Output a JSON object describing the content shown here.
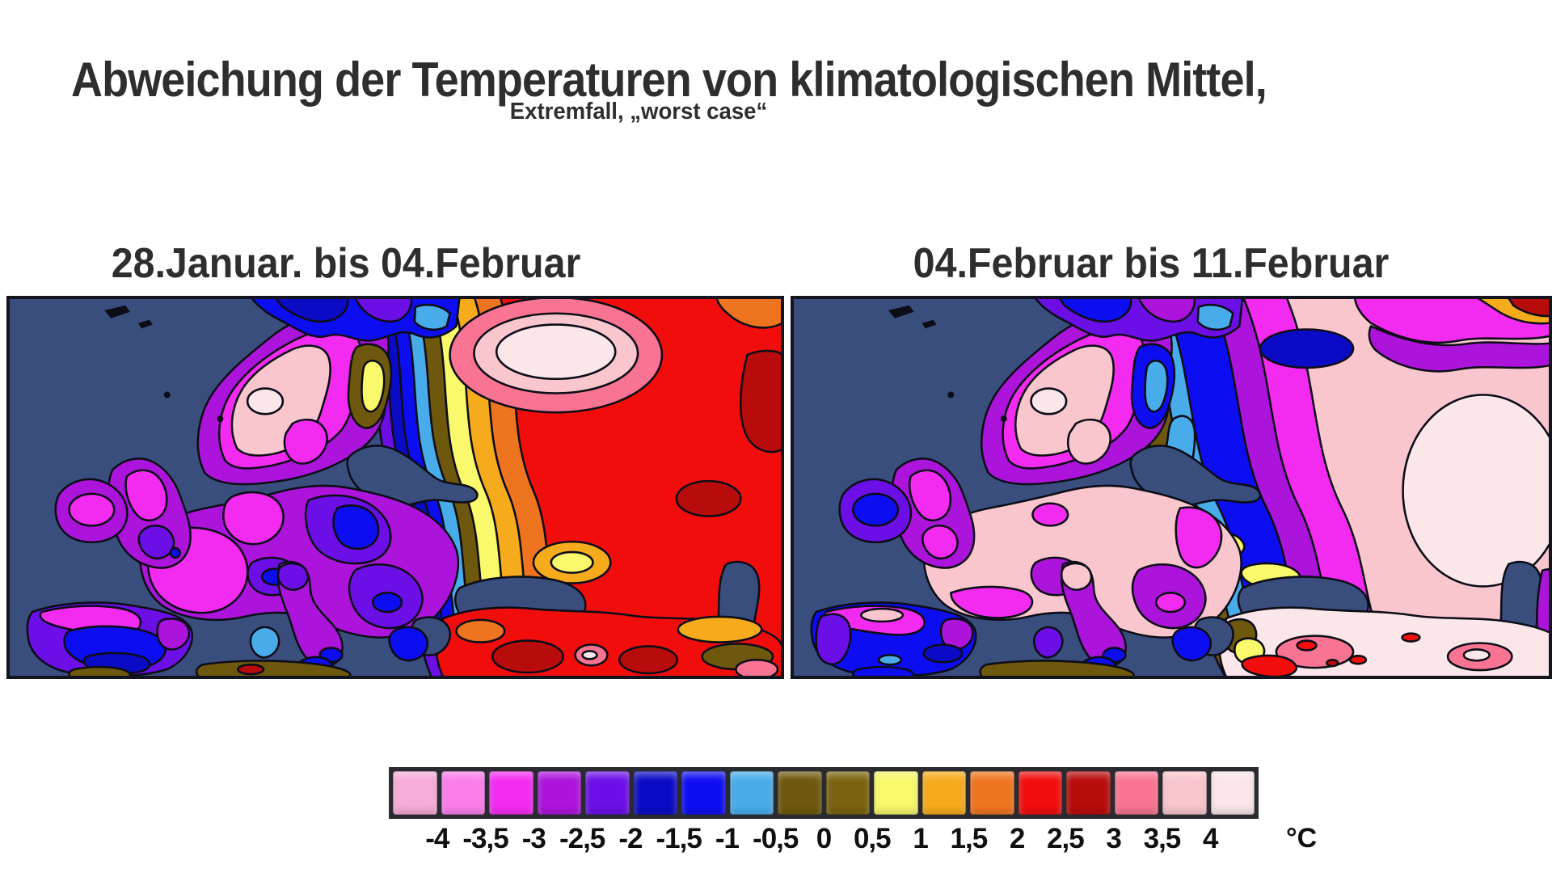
{
  "header": {
    "title": "Abweichung der Temperaturen von klimatologischen Mittel,",
    "subtitle": "Extremfall, „worst case“"
  },
  "panels": [
    {
      "id": "left",
      "label": "28.Januar. bis 04.Februar"
    },
    {
      "id": "right",
      "label": "04.Februar bis 11.Februar"
    }
  ],
  "legend": {
    "unit": "°C",
    "tick_labels": [
      "-4",
      "-3,5",
      "-3",
      "-2,5",
      "-2",
      "-1,5",
      "-1",
      "-0,5",
      "0",
      "0,5",
      "1",
      "1,5",
      "2",
      "2,5",
      "3",
      "3,5",
      "4"
    ],
    "colors": [
      "#F8ACD8",
      "#FB7DEB",
      "#F32BF0",
      "#AC14DC",
      "#6B0FE6",
      "#0B0BC6",
      "#0D0DF2",
      "#48ACEA",
      "#6E580D",
      "#7A620E",
      "#F9F96B",
      "#F6AB1C",
      "#EF7420",
      "#F20D0D",
      "#B80B0B",
      "#F97492",
      "#F9C6CE",
      "#FBE7EA"
    ],
    "sea_color": "#3A4E7E",
    "outline_color": "#0D0D18"
  }
}
